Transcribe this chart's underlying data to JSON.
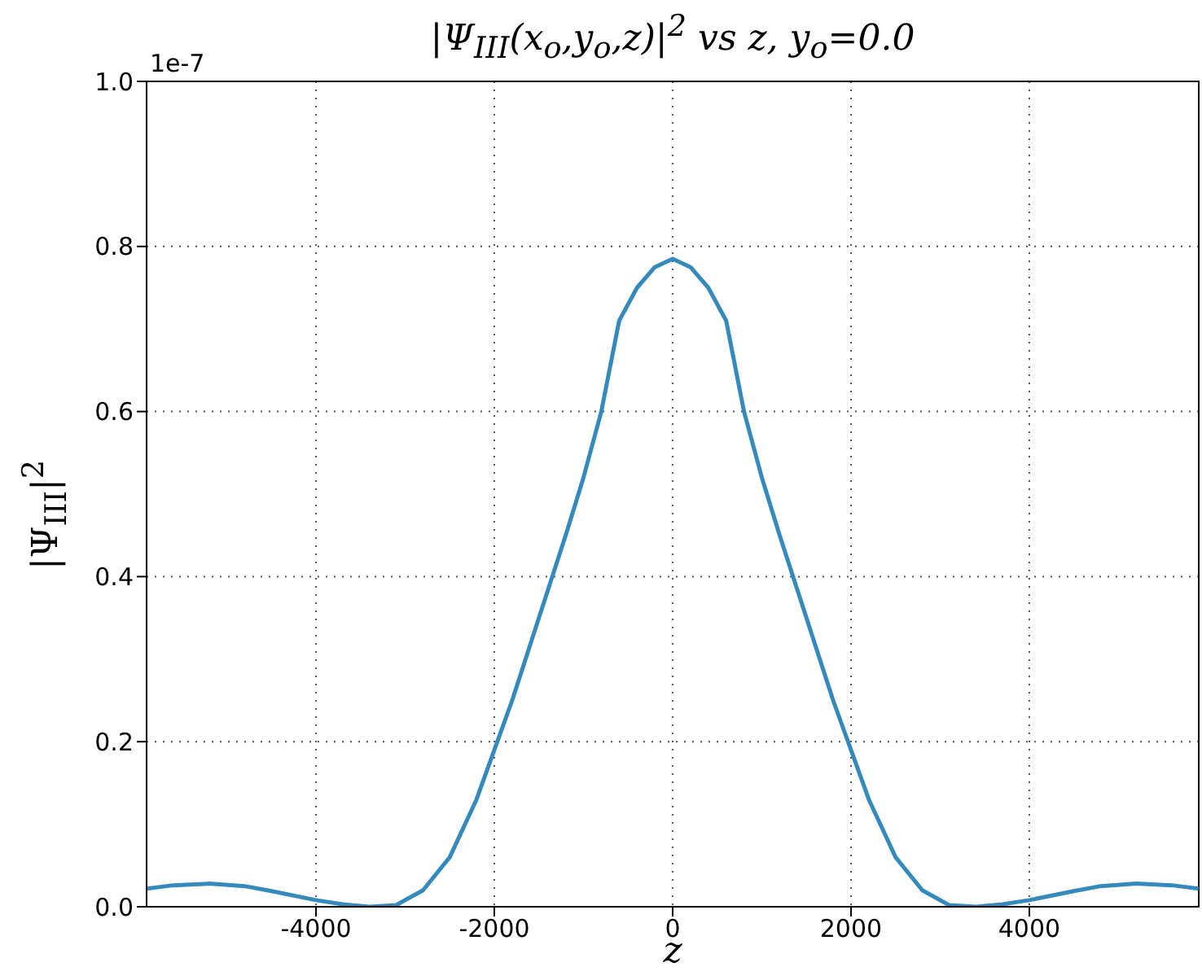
{
  "chart_data": {
    "type": "line",
    "title": "|Ψ$_{III}$(x$_{o}$,y$_{o}$,z)|$^{2}$ vs z, y$_{o}$=0.0",
    "xlabel": "z",
    "ylabel": "|Ψ$_{III}$|$^{2}$",
    "annotations": [
      "1e-7"
    ],
    "x": [
      -5900,
      -5600,
      -5200,
      -4800,
      -4500,
      -4000,
      -3700,
      -3400,
      -3100,
      -2800,
      -2500,
      -2200,
      -2000,
      -1800,
      -1500,
      -1200,
      -1000,
      -800,
      -600,
      -400,
      -200,
      0,
      200,
      400,
      600,
      800,
      1000,
      1200,
      1500,
      1800,
      2000,
      2200,
      2500,
      2800,
      3100,
      3400,
      3700,
      4000,
      4500,
      4800,
      5200,
      5600,
      5900
    ],
    "series": [
      {
        "color": "#348abd",
        "values": [
          0.022,
          0.026,
          0.028,
          0.025,
          0.019,
          0.008,
          0.003,
          0.0,
          0.002,
          0.02,
          0.06,
          0.13,
          0.19,
          0.25,
          0.35,
          0.45,
          0.52,
          0.6,
          0.71,
          0.75,
          0.775,
          0.785,
          0.775,
          0.75,
          0.71,
          0.6,
          0.52,
          0.45,
          0.35,
          0.25,
          0.19,
          0.13,
          0.06,
          0.02,
          0.002,
          0.0,
          0.003,
          0.008,
          0.019,
          0.025,
          0.028,
          0.026,
          0.022
        ]
      }
    ],
    "xlim": [
      -5900,
      5900
    ],
    "xticks": [
      -4000,
      -2000,
      0,
      2000,
      4000
    ],
    "ylim": [
      0,
      1
    ],
    "yticks": [
      {
        "value": 0,
        "label": "0.0"
      },
      {
        "value": 0.2,
        "label": "0.2"
      },
      {
        "value": 0.4,
        "label": "0.4"
      },
      {
        "value": 0.6,
        "label": "0.6"
      },
      {
        "value": 0.8,
        "label": "0.8"
      },
      {
        "value": 1,
        "label": "1.0"
      }
    ],
    "grid": true,
    "legend": false,
    "marker": "none",
    "line_style": "solid"
  }
}
